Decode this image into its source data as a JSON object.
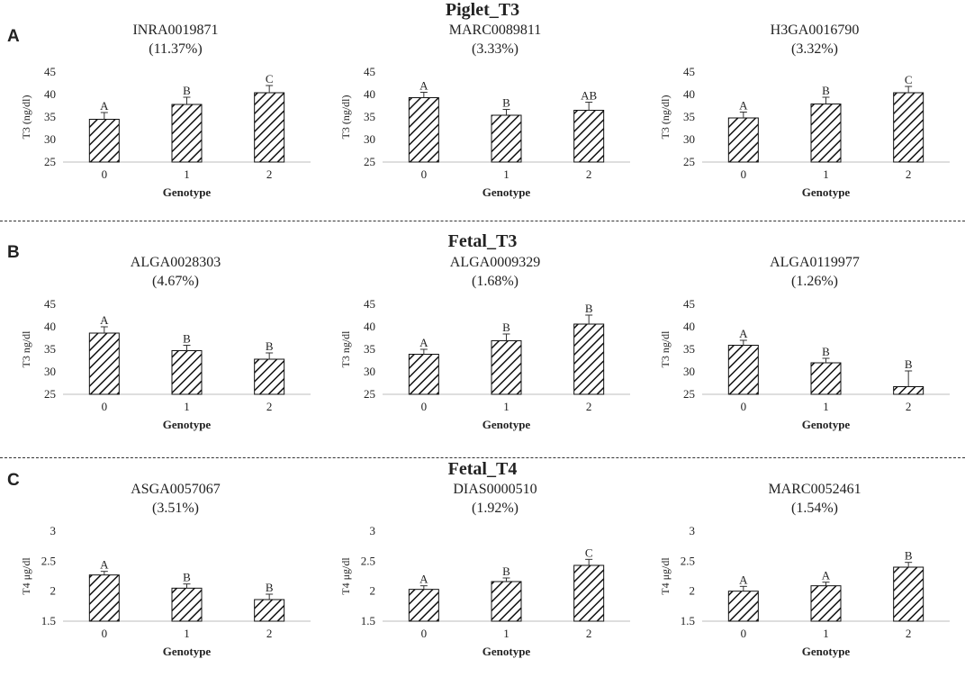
{
  "sections": [
    {
      "letter": "A",
      "title": "Piglet_T3"
    },
    {
      "letter": "B",
      "title": "Fetal_T3"
    },
    {
      "letter": "C",
      "title": "Fetal_T4"
    }
  ],
  "chart_data": [
    {
      "type": "bar",
      "section": "Piglet_T3",
      "marker": "INRA0019871",
      "pve": "(11.37%)",
      "categories": [
        "0",
        "1",
        "2"
      ],
      "values": [
        34.5,
        37.8,
        40.4
      ],
      "errors": [
        1.5,
        1.6,
        1.6
      ],
      "letters": [
        "A",
        "B",
        "C"
      ],
      "ylabel": "T3 (ng/dl)",
      "xlabel": "Genotype",
      "ylim": [
        25,
        45
      ],
      "yticks": [
        "25",
        "30",
        "35",
        "40",
        "45"
      ],
      "ytickvals": [
        25,
        30,
        35,
        40,
        45
      ]
    },
    {
      "type": "bar",
      "section": "Piglet_T3",
      "marker": "MARC0089811",
      "pve": "(3.33%)",
      "categories": [
        "0",
        "1",
        "2"
      ],
      "values": [
        39.3,
        35.4,
        36.5
      ],
      "errors": [
        1.2,
        1.3,
        1.8
      ],
      "letters": [
        "A",
        "B",
        "AB"
      ],
      "ylabel": "T3 (ng/dl)",
      "xlabel": "Genotype",
      "ylim": [
        25,
        45
      ],
      "yticks": [
        "25",
        "30",
        "35",
        "40",
        "45"
      ],
      "ytickvals": [
        25,
        30,
        35,
        40,
        45
      ]
    },
    {
      "type": "bar",
      "section": "Piglet_T3",
      "marker": "H3GA0016790",
      "pve": "(3.32%)",
      "categories": [
        "0",
        "1",
        "2"
      ],
      "values": [
        34.8,
        37.9,
        40.4
      ],
      "errors": [
        1.3,
        1.5,
        1.4
      ],
      "letters": [
        "A",
        "B",
        "C"
      ],
      "ylabel": "T3 (ng/dl)",
      "xlabel": "Genotype",
      "ylim": [
        25,
        45
      ],
      "yticks": [
        "25",
        "30",
        "35",
        "40",
        "45"
      ],
      "ytickvals": [
        25,
        30,
        35,
        40,
        45
      ]
    },
    {
      "type": "bar",
      "section": "Fetal_T3",
      "marker": "ALGA0028303",
      "pve": "(4.67%)",
      "categories": [
        "0",
        "1",
        "2"
      ],
      "values": [
        38.6,
        34.7,
        32.8
      ],
      "errors": [
        1.4,
        1.2,
        1.4
      ],
      "letters": [
        "A",
        "B",
        "B"
      ],
      "ylabel": "T3 ng/dl",
      "xlabel": "Genotype",
      "ylim": [
        25,
        45
      ],
      "yticks": [
        "25",
        "30",
        "35",
        "40",
        "45"
      ],
      "ytickvals": [
        25,
        30,
        35,
        40,
        45
      ]
    },
    {
      "type": "bar",
      "section": "Fetal_T3",
      "marker": "ALGA0009329",
      "pve": "(1.68%)",
      "categories": [
        "0",
        "1",
        "2"
      ],
      "values": [
        33.9,
        36.9,
        40.6
      ],
      "errors": [
        1.1,
        1.5,
        2.0
      ],
      "letters": [
        "A",
        "B",
        "B"
      ],
      "ylabel": "T3 ng/dl",
      "xlabel": "Genotype",
      "ylim": [
        25,
        45
      ],
      "yticks": [
        "25",
        "30",
        "35",
        "40",
        "45"
      ],
      "ytickvals": [
        25,
        30,
        35,
        40,
        45
      ]
    },
    {
      "type": "bar",
      "section": "Fetal_T3",
      "marker": "ALGA0119977",
      "pve": "(1.26%)",
      "categories": [
        "0",
        "1",
        "2"
      ],
      "values": [
        35.9,
        32.0,
        26.7
      ],
      "errors": [
        1.1,
        1.0,
        3.5
      ],
      "letters": [
        "A",
        "B",
        "B"
      ],
      "ylabel": "T3 ng/dl",
      "xlabel": "Genotype",
      "ylim": [
        25,
        45
      ],
      "yticks": [
        "25",
        "30",
        "35",
        "40",
        "45"
      ],
      "ytickvals": [
        25,
        30,
        35,
        40,
        45
      ]
    },
    {
      "type": "bar",
      "section": "Fetal_T4",
      "marker": "ASGA0057067",
      "pve": "(3.51%)",
      "categories": [
        "0",
        "1",
        "2"
      ],
      "values": [
        2.27,
        2.05,
        1.86
      ],
      "errors": [
        0.06,
        0.07,
        0.09
      ],
      "letters": [
        "A",
        "B",
        "B"
      ],
      "ylabel": "T4 μg/dl",
      "xlabel": "Genotype",
      "ylim": [
        1.5,
        3
      ],
      "yticks": [
        "1.5",
        "2",
        "2.5",
        "3"
      ],
      "ytickvals": [
        1.5,
        2,
        2.5,
        3
      ]
    },
    {
      "type": "bar",
      "section": "Fetal_T4",
      "marker": "DIAS0000510",
      "pve": "(1.92%)",
      "categories": [
        "0",
        "1",
        "2"
      ],
      "values": [
        2.03,
        2.16,
        2.43
      ],
      "errors": [
        0.06,
        0.06,
        0.1
      ],
      "letters": [
        "A",
        "B",
        "C"
      ],
      "ylabel": "T4 μg/dl",
      "xlabel": "Genotype",
      "ylim": [
        1.5,
        3
      ],
      "yticks": [
        "1.5",
        "2",
        "2.5",
        "3"
      ],
      "ytickvals": [
        1.5,
        2,
        2.5,
        3
      ]
    },
    {
      "type": "bar",
      "section": "Fetal_T4",
      "marker": "MARC0052461",
      "pve": "(1.54%)",
      "categories": [
        "0",
        "1",
        "2"
      ],
      "values": [
        2.0,
        2.09,
        2.4
      ],
      "errors": [
        0.08,
        0.06,
        0.08
      ],
      "letters": [
        "A",
        "A",
        "B"
      ],
      "ylabel": "T4 μg/dl",
      "xlabel": "Genotype",
      "ylim": [
        1.5,
        3
      ],
      "yticks": [
        "1.5",
        "2",
        "2.5",
        "3"
      ],
      "ytickvals": [
        1.5,
        2,
        2.5,
        3
      ]
    }
  ]
}
